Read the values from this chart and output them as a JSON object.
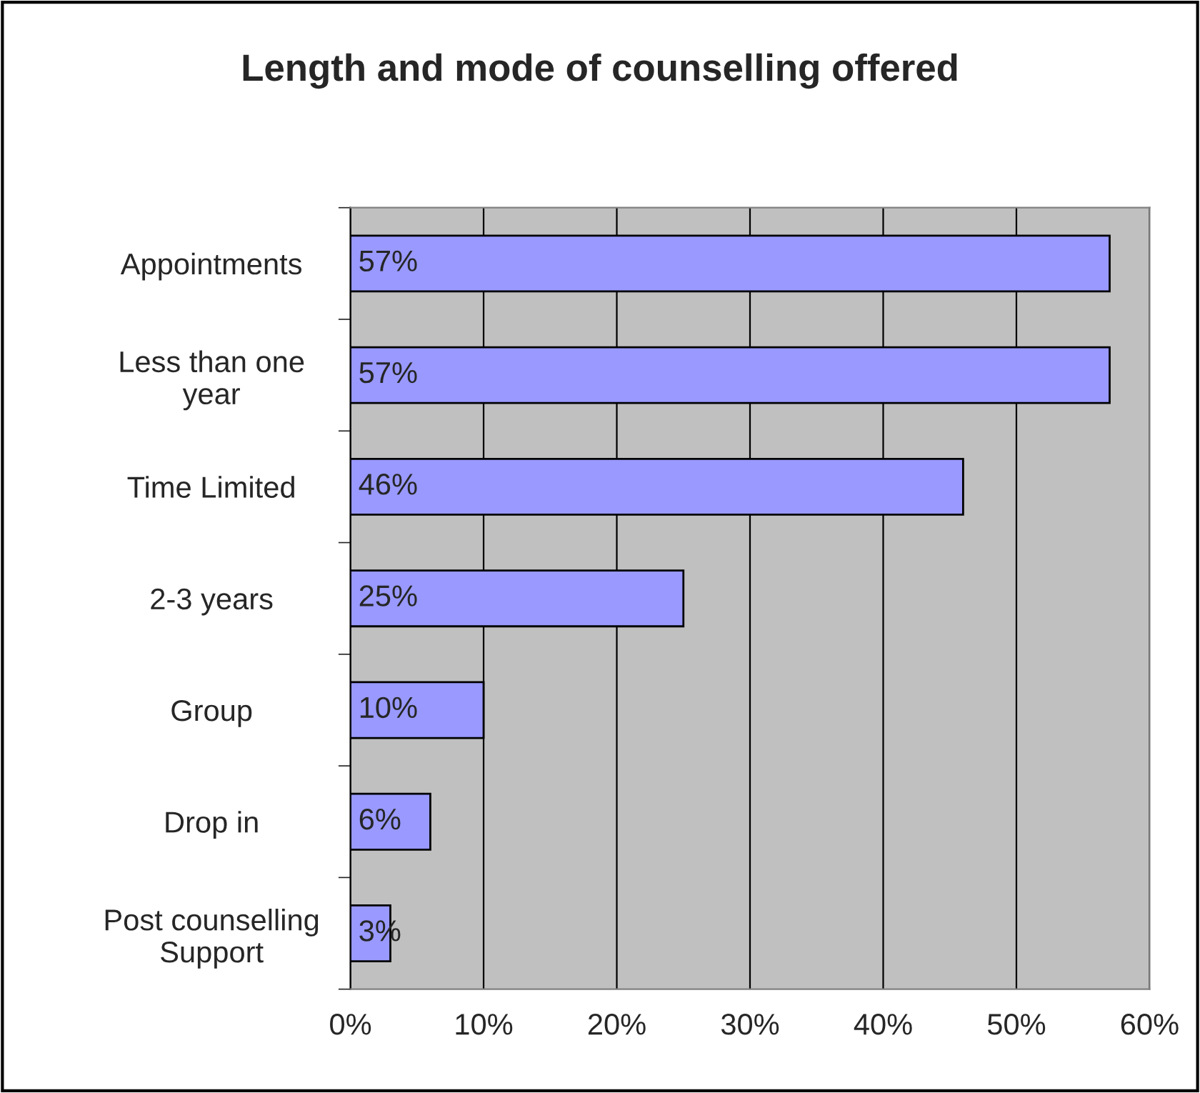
{
  "chart_data": {
    "type": "bar",
    "orientation": "horizontal",
    "title": "Length and mode of counselling offered",
    "categories": [
      "Appointments",
      "Less than one\nyear",
      "Time Limited",
      "2-3 years",
      "Group",
      "Drop in",
      "Post counselling\nSupport"
    ],
    "values": [
      57,
      57,
      46,
      25,
      10,
      6,
      3
    ],
    "value_labels": [
      "57%",
      "57%",
      "46%",
      "25%",
      "10%",
      "6%",
      "3%"
    ],
    "color": "#9999ff",
    "xlim": [
      0,
      60
    ],
    "xticks": [
      {
        "value": 0,
        "label": "0%"
      },
      {
        "value": 10,
        "label": "10%"
      },
      {
        "value": 20,
        "label": "20%"
      },
      {
        "value": 30,
        "label": "30%"
      },
      {
        "value": 40,
        "label": "40%"
      },
      {
        "value": 50,
        "label": "50%"
      },
      {
        "value": 60,
        "label": "60%"
      }
    ],
    "grid": "x",
    "legend": false
  }
}
